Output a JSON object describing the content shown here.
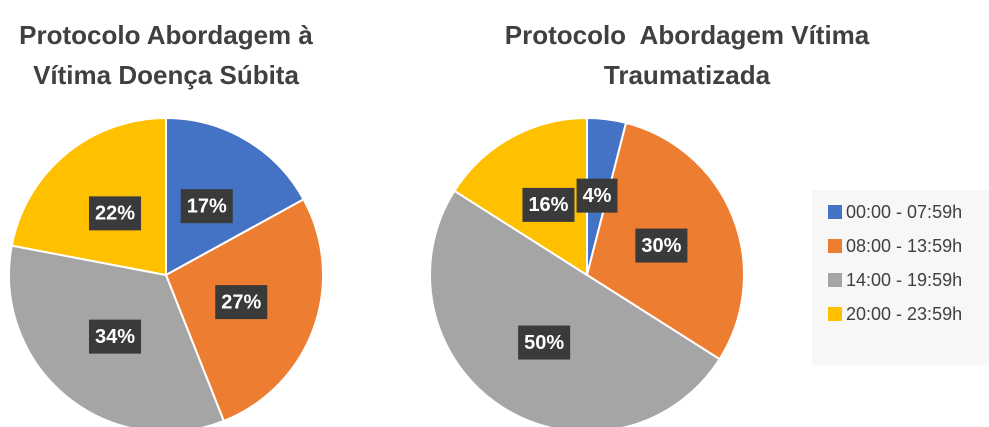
{
  "chart_data": [
    {
      "type": "pie",
      "title": [
        "Protocolo Abordagem à",
        "Vítima Doença Súbita"
      ],
      "values": [
        17,
        27,
        34,
        22
      ],
      "value_labels": [
        "17%",
        "27%",
        "34%",
        "22%"
      ]
    },
    {
      "type": "pie",
      "title": [
        "Protocolo  Abordagem Vítima",
        "Traumatizada"
      ],
      "values": [
        4,
        30,
        50,
        16
      ],
      "value_labels": [
        "4%",
        "30%",
        "50%",
        "16%"
      ]
    }
  ],
  "legend": {
    "labels": [
      "00:00 - 07:59h",
      "08:00 - 13:59h",
      "14:00 - 19:59h",
      "20:00 - 23:59h"
    ],
    "colors": [
      "#4472c4",
      "#ed7d31",
      "#a5a5a5",
      "#ffc000"
    ]
  }
}
